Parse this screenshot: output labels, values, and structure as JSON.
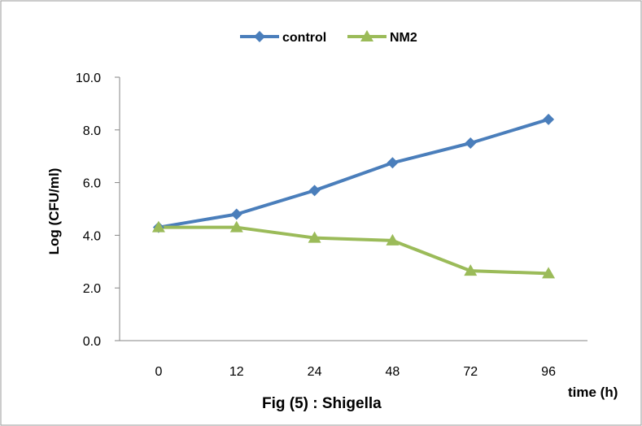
{
  "chart_data": {
    "type": "line",
    "title": "",
    "caption": "Fig (5) : Shigella",
    "xlabel": "time (h)",
    "ylabel": "Log (CFU/ml)",
    "categories": [
      "0",
      "12",
      "24",
      "48",
      "72",
      "96"
    ],
    "ylim": [
      0,
      10
    ],
    "yticks": [
      "0.0",
      "2.0",
      "4.0",
      "6.0",
      "8.0",
      "10.0"
    ],
    "grid": false,
    "legend_position": "top",
    "series": [
      {
        "name": "control",
        "color": "#4a7ebb",
        "marker": "diamond",
        "values": [
          4.3,
          4.8,
          5.7,
          6.75,
          7.5,
          8.4
        ]
      },
      {
        "name": "NM2",
        "color": "#9bbb59",
        "marker": "triangle",
        "values": [
          4.3,
          4.3,
          3.9,
          3.8,
          2.65,
          2.55
        ]
      }
    ]
  }
}
